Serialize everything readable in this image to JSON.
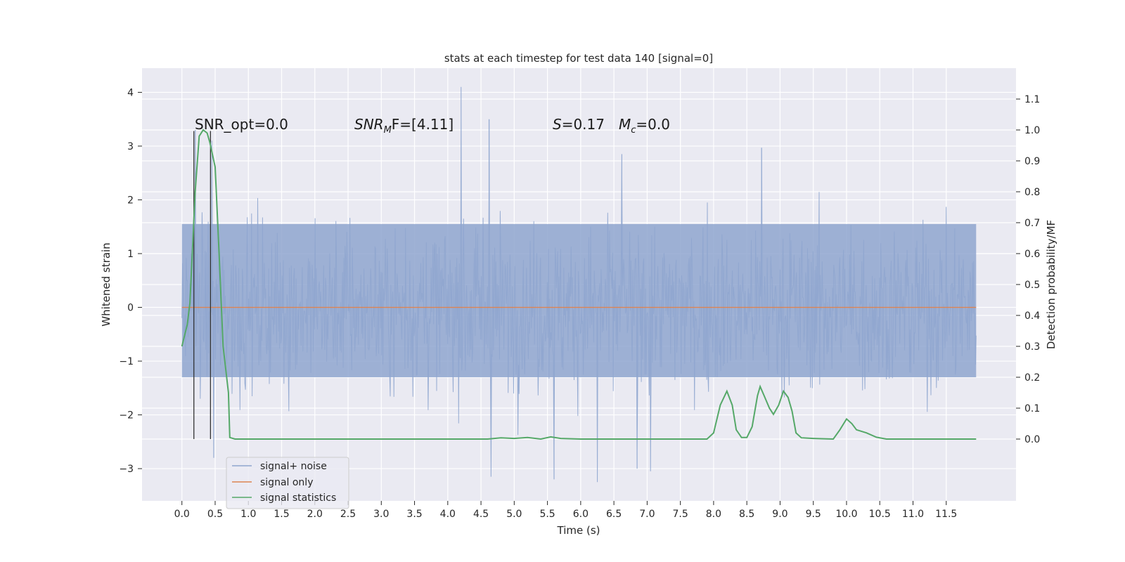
{
  "chart_data": {
    "type": "line",
    "title": "stats at each timestep for test data 140 [signal=0]",
    "xlabel": "Time (s)",
    "ylabel": "Whitened strain",
    "ylabel_right": "Detection probability/MF",
    "xlim": [
      -0.6,
      12.55
    ],
    "ylim": [
      -3.6,
      4.45
    ],
    "ylim_right": [
      -0.2,
      1.2
    ],
    "x_ticks": [
      0.0,
      0.5,
      1.0,
      1.5,
      2.0,
      2.5,
      3.0,
      3.5,
      4.0,
      4.5,
      5.0,
      5.5,
      6.0,
      6.5,
      7.0,
      7.5,
      8.0,
      8.5,
      9.0,
      9.5,
      10.0,
      10.5,
      11.0,
      11.5
    ],
    "x_tick_labels": [
      "0.0",
      "0.5",
      "1.0",
      "1.5",
      "2.0",
      "2.5",
      "3.0",
      "3.5",
      "4.0",
      "4.5",
      "5.0",
      "5.5",
      "6.0",
      "6.5",
      "7.0",
      "7.5",
      "8.0",
      "8.5",
      "9.0",
      "9.5",
      "10.0",
      "10.5",
      "11.0",
      "11.5"
    ],
    "y_ticks": [
      -3,
      -2,
      -1,
      0,
      1,
      2,
      3,
      4
    ],
    "y_tick_labels": [
      "−3",
      "−2",
      "−1",
      "0",
      "1",
      "2",
      "3",
      "4"
    ],
    "y_ticks_right": [
      0.0,
      0.1,
      0.2,
      0.3,
      0.4,
      0.5,
      0.6,
      0.7,
      0.8,
      0.9,
      1.0,
      1.1
    ],
    "y_tick_labels_right": [
      "0.0",
      "0.1",
      "0.2",
      "0.3",
      "0.4",
      "0.5",
      "0.6",
      "0.7",
      "0.8",
      "0.9",
      "1.0",
      "1.1"
    ],
    "grid": true,
    "legend_position": "lower-left",
    "series": [
      {
        "name": "signal+ noise",
        "axis": "left",
        "color": "#8fa6cf",
        "description_values": "dense noise between about -2.5 and 2.5 over t = 0 to 12",
        "peaks": [
          [
            4.2,
            4.1
          ],
          [
            4.62,
            3.5
          ],
          [
            6.62,
            2.85
          ],
          [
            8.72,
            2.97
          ],
          [
            0.2,
            3.3
          ],
          [
            0.45,
            3.1
          ],
          [
            4.65,
            -3.15
          ],
          [
            5.6,
            -3.2
          ],
          [
            6.25,
            -3.25
          ],
          [
            7.05,
            -3.05
          ],
          [
            6.85,
            -3.0
          ],
          [
            0.48,
            -2.8
          ]
        ]
      },
      {
        "name": "signal only",
        "axis": "left",
        "color": "#dd8452",
        "values_constant": 0.0
      },
      {
        "name": "signal statistics",
        "axis": "right",
        "color": "#55a868",
        "points": [
          [
            0.0,
            0.3
          ],
          [
            0.08,
            0.37
          ],
          [
            0.12,
            0.44
          ],
          [
            0.2,
            0.8
          ],
          [
            0.26,
            0.98
          ],
          [
            0.32,
            1.0
          ],
          [
            0.38,
            0.99
          ],
          [
            0.42,
            0.96
          ],
          [
            0.5,
            0.88
          ],
          [
            0.56,
            0.6
          ],
          [
            0.62,
            0.3
          ],
          [
            0.7,
            0.15
          ],
          [
            0.72,
            0.005
          ],
          [
            0.8,
            0.0
          ],
          [
            1.0,
            0.0
          ],
          [
            2.0,
            0.0
          ],
          [
            3.0,
            0.0
          ],
          [
            4.0,
            0.0
          ],
          [
            4.6,
            0.0
          ],
          [
            4.8,
            0.004
          ],
          [
            5.0,
            0.002
          ],
          [
            5.2,
            0.005
          ],
          [
            5.4,
            0.0
          ],
          [
            5.55,
            0.007
          ],
          [
            5.7,
            0.002
          ],
          [
            6.0,
            0.0
          ],
          [
            7.0,
            0.0
          ],
          [
            7.9,
            0.0
          ],
          [
            8.0,
            0.02
          ],
          [
            8.1,
            0.11
          ],
          [
            8.2,
            0.155
          ],
          [
            8.28,
            0.11
          ],
          [
            8.34,
            0.03
          ],
          [
            8.42,
            0.005
          ],
          [
            8.5,
            0.005
          ],
          [
            8.58,
            0.04
          ],
          [
            8.66,
            0.14
          ],
          [
            8.7,
            0.17
          ],
          [
            8.76,
            0.14
          ],
          [
            8.84,
            0.1
          ],
          [
            8.9,
            0.08
          ],
          [
            8.98,
            0.11
          ],
          [
            9.05,
            0.155
          ],
          [
            9.12,
            0.135
          ],
          [
            9.18,
            0.09
          ],
          [
            9.24,
            0.02
          ],
          [
            9.32,
            0.004
          ],
          [
            9.5,
            0.002
          ],
          [
            9.8,
            0.0
          ],
          [
            9.9,
            0.03
          ],
          [
            10.0,
            0.065
          ],
          [
            10.08,
            0.05
          ],
          [
            10.15,
            0.03
          ],
          [
            10.3,
            0.02
          ],
          [
            10.45,
            0.006
          ],
          [
            10.6,
            0.0
          ],
          [
            11.0,
            0.0
          ],
          [
            11.5,
            0.0
          ],
          [
            11.95,
            0.0
          ]
        ]
      }
    ],
    "vertical_markers": [
      {
        "x": 0.18,
        "y_top": 3.28,
        "y_bottom": -2.45
      },
      {
        "x": 0.43,
        "y_top": 3.28,
        "y_bottom": -2.45
      }
    ],
    "annotations": {
      "snr_opt": "SNR_opt=0.0",
      "snr_mf": [
        "SNR",
        "M",
        "F=[4.11]"
      ],
      "s_stat": [
        "S",
        "=0.17"
      ],
      "mc": [
        "M",
        "c",
        "=0.0"
      ]
    }
  }
}
